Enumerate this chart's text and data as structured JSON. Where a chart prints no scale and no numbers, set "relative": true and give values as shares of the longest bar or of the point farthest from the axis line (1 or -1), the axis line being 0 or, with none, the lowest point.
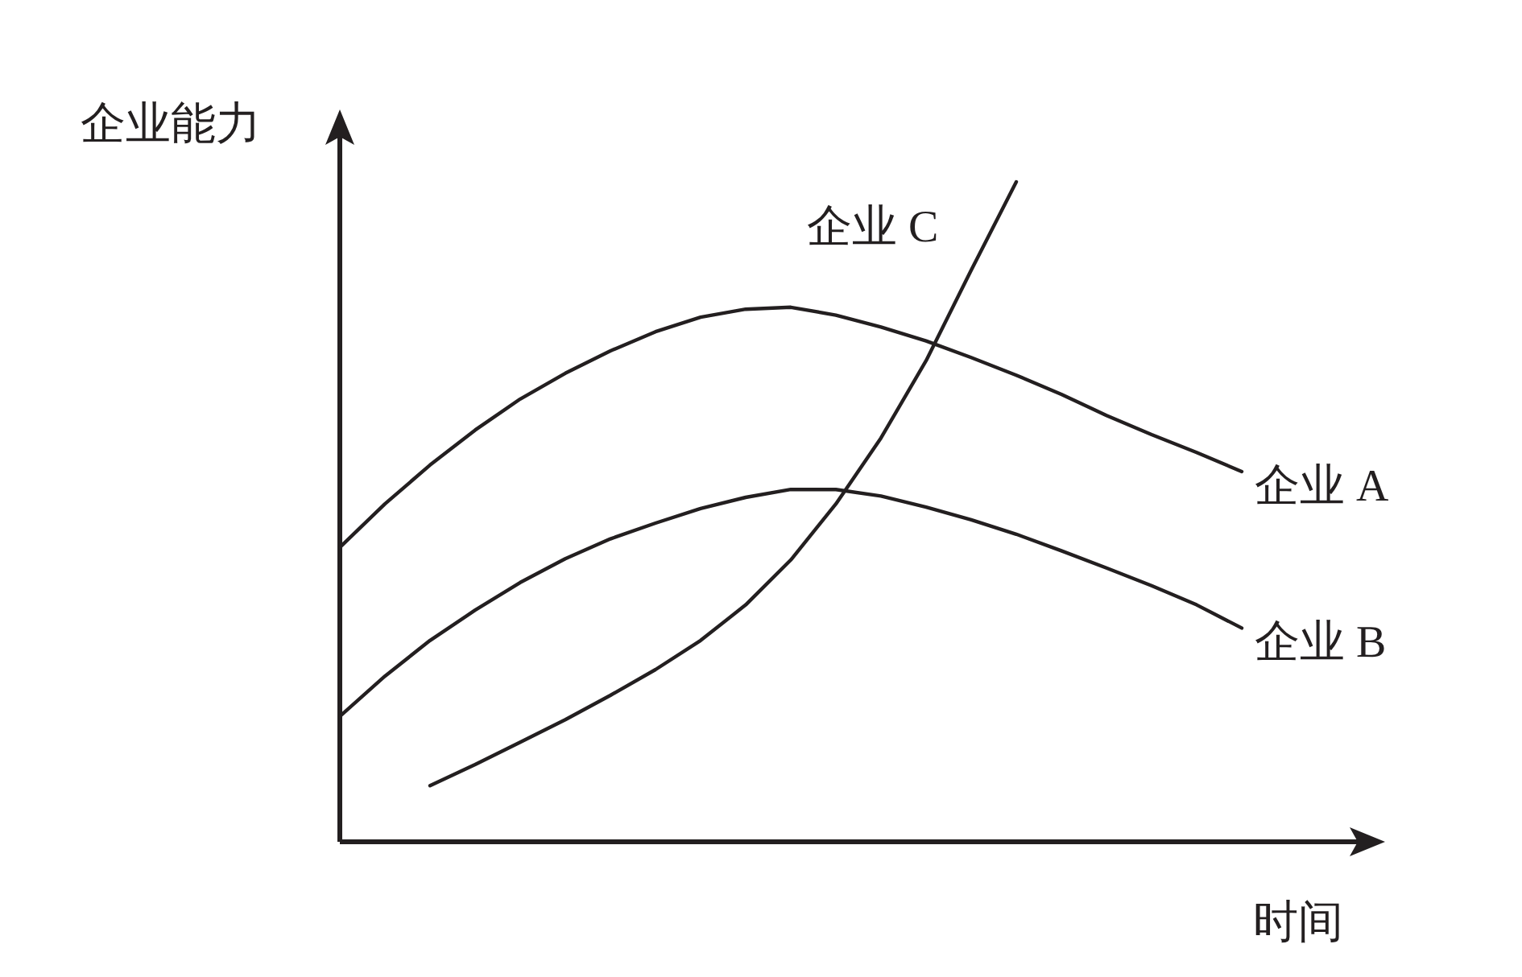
{
  "chart_data": {
    "type": "line",
    "relative": true,
    "xlabel": "时间",
    "ylabel": "企业能力",
    "categories": [
      null,
      null,
      null,
      null,
      null,
      null,
      null,
      null,
      null,
      null,
      null,
      null,
      null,
      null,
      null,
      null,
      null,
      null,
      null,
      null,
      null
    ],
    "series": [
      {
        "name": "企业 A",
        "color": "#231f20",
        "values": [
          0.446,
          0.512,
          0.571,
          0.624,
          0.671,
          0.71,
          0.744,
          0.773,
          0.795,
          0.807,
          0.81,
          0.798,
          0.78,
          0.759,
          0.734,
          0.707,
          0.678,
          0.646,
          0.617,
          0.59,
          0.561
        ]
      },
      {
        "name": "企业 B",
        "color": "#231f20",
        "values": [
          0.19,
          0.251,
          0.305,
          0.351,
          0.393,
          0.429,
          0.459,
          0.483,
          0.505,
          0.522,
          0.534,
          0.534,
          0.524,
          0.507,
          0.488,
          0.466,
          0.441,
          0.415,
          0.388,
          0.359,
          0.324
        ]
      },
      {
        "name": "企业 C",
        "color": "#231f20",
        "values": [
          null,
          null,
          0.085,
          0.117,
          0.151,
          0.185,
          0.222,
          0.261,
          0.305,
          0.359,
          0.427,
          0.512,
          0.612,
          0.729,
          0.866,
          1.0,
          null,
          null,
          null,
          null,
          null
        ]
      }
    ]
  }
}
